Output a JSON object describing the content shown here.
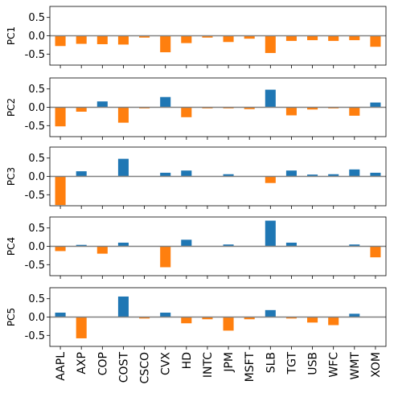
{
  "chart_data": {
    "type": "bar",
    "categories": [
      "AAPL",
      "AXP",
      "COP",
      "COST",
      "CSCO",
      "CVX",
      "HD",
      "INTC",
      "JPM",
      "MSFT",
      "SLB",
      "TGT",
      "USB",
      "WFC",
      "WMT",
      "XOM"
    ],
    "positive_color": "#1f77b4",
    "negative_color": "#ff7f0e",
    "zero_line_color": "#808080",
    "ylim": [
      -0.8,
      0.8
    ],
    "yticks": [
      0.5,
      0.0,
      -0.5
    ],
    "ytick_labels": [
      "0.5",
      "0.0",
      "-0.5"
    ],
    "grid": false,
    "panels": [
      {
        "ylabel": "PC1",
        "values": [
          -0.28,
          -0.22,
          -0.23,
          -0.24,
          -0.05,
          -0.45,
          -0.2,
          -0.05,
          -0.17,
          -0.08,
          -0.47,
          -0.14,
          -0.12,
          -0.14,
          -0.12,
          -0.3
        ]
      },
      {
        "ylabel": "PC2",
        "values": [
          -0.52,
          -0.12,
          0.16,
          -0.42,
          -0.03,
          0.28,
          -0.27,
          -0.03,
          -0.03,
          -0.05,
          0.48,
          -0.22,
          -0.06,
          -0.03,
          -0.23,
          0.13
        ]
      },
      {
        "ylabel": "PC3",
        "values": [
          -0.78,
          0.14,
          0.0,
          0.48,
          0.0,
          0.1,
          0.16,
          0.0,
          0.06,
          0.0,
          -0.18,
          0.16,
          0.05,
          0.06,
          0.19,
          0.1
        ]
      },
      {
        "ylabel": "PC4",
        "values": [
          -0.13,
          0.04,
          -0.2,
          0.1,
          0.0,
          -0.57,
          0.18,
          0.0,
          0.05,
          0.0,
          0.7,
          0.1,
          0.0,
          0.0,
          0.05,
          -0.3
        ]
      },
      {
        "ylabel": "PC5",
        "values": [
          0.12,
          -0.58,
          0.0,
          0.56,
          -0.04,
          0.12,
          -0.17,
          -0.06,
          -0.37,
          -0.06,
          0.19,
          -0.04,
          -0.15,
          -0.22,
          0.09,
          0.0
        ]
      }
    ]
  }
}
